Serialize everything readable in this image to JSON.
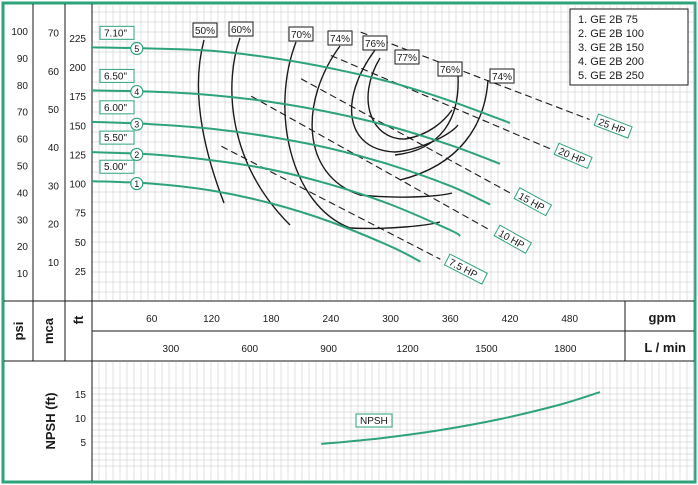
{
  "colors": {
    "frame": "#2ea37a",
    "curve": "#2ea37a",
    "black": "#1a1a1a",
    "grid": "#c4c4c4"
  },
  "axis_titles": {
    "psi": "psi",
    "mca": "mca",
    "ft": "ft",
    "gpm": "gpm",
    "lmin": "L / min",
    "npsh": "NPSH (ft)"
  },
  "legend": [
    "1. GE 2B 75",
    "2. GE 2B 100",
    "3. GE 2B 150",
    "4. GE 2B 200",
    "5. GE 2B 250"
  ],
  "chart_data": [
    {
      "type": "line",
      "title": "",
      "xlabel": "gpm",
      "ylabel": "ft",
      "secondary_x": {
        "label": "L / min",
        "ticks": [
          300,
          600,
          900,
          1200,
          1500,
          1800
        ]
      },
      "secondary_y": [
        {
          "label": "psi",
          "ticks": [
            10,
            20,
            30,
            40,
            50,
            60,
            70,
            80,
            90,
            100
          ]
        },
        {
          "label": "mca",
          "ticks": [
            10,
            20,
            30,
            40,
            50,
            60,
            70
          ]
        }
      ],
      "x_ticks": [
        60,
        120,
        180,
        240,
        300,
        360,
        420,
        480
      ],
      "y_ticks": [
        25,
        50,
        75,
        100,
        125,
        150,
        175,
        200,
        225
      ],
      "xlim": [
        0,
        530
      ],
      "ylim": [
        0,
        240
      ],
      "series": [
        {
          "name": "1",
          "impeller": "5.00\"",
          "x": [
            0,
            60,
            120,
            180,
            240,
            300,
            330
          ],
          "y": [
            102,
            100,
            94,
            83,
            67,
            46,
            33
          ]
        },
        {
          "name": "2",
          "impeller": "5.50\"",
          "x": [
            0,
            60,
            120,
            180,
            240,
            300,
            360,
            370
          ],
          "y": [
            127,
            125,
            120,
            112,
            99,
            82,
            60,
            55
          ]
        },
        {
          "name": "3",
          "impeller": "6.00\"",
          "x": [
            0,
            60,
            120,
            180,
            240,
            300,
            360,
            400
          ],
          "y": [
            153,
            151,
            147,
            140,
            130,
            116,
            98,
            82
          ]
        },
        {
          "name": "4",
          "impeller": "6.50\"",
          "x": [
            0,
            60,
            120,
            180,
            240,
            300,
            360,
            410
          ],
          "y": [
            180,
            179,
            176,
            170,
            161,
            149,
            133,
            117
          ]
        },
        {
          "name": "5",
          "impeller": "7.10\"",
          "x": [
            0,
            60,
            120,
            180,
            240,
            300,
            360,
            420
          ],
          "y": [
            217,
            216,
            214,
            208,
            199,
            187,
            171,
            152
          ]
        }
      ],
      "hp_lines": [
        {
          "label": "7.5 HP",
          "x": [
            130,
            350
          ],
          "y": [
            132,
            35
          ]
        },
        {
          "label": "10 HP",
          "x": [
            160,
            400
          ],
          "y": [
            175,
            60
          ]
        },
        {
          "label": "15 HP",
          "x": [
            210,
            420
          ],
          "y": [
            190,
            92
          ]
        },
        {
          "label": "20 HP",
          "x": [
            240,
            460
          ],
          "y": [
            210,
            130
          ]
        },
        {
          "label": "25 HP",
          "x": [
            270,
            500
          ],
          "y": [
            230,
            155
          ]
        }
      ],
      "efficiency_labels": [
        "50%",
        "60%",
        "70%",
        "74%",
        "76%",
        "77%",
        "76%",
        "74%"
      ]
    },
    {
      "type": "line",
      "title": "",
      "xlabel": "gpm",
      "ylabel": "NPSH (ft)",
      "y_ticks": [
        5,
        10,
        15
      ],
      "series": [
        {
          "name": "NPSH",
          "x": [
            140,
            200,
            260,
            320,
            380,
            420
          ],
          "y": [
            4.6,
            5.8,
            7.5,
            9.8,
            12.8,
            15.4
          ]
        }
      ]
    }
  ]
}
